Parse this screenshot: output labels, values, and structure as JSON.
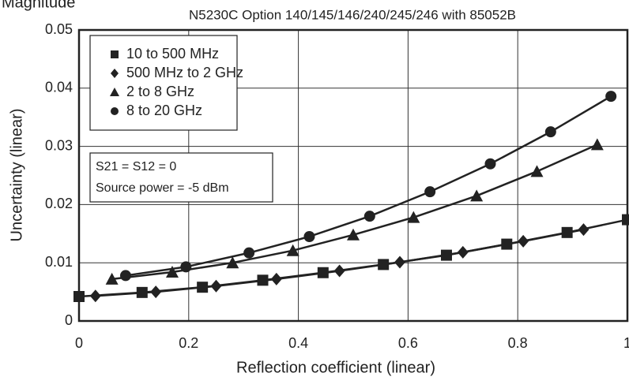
{
  "chart_data": {
    "type": "line",
    "corner_label": "Magnitude",
    "title": "N5230C Option 140/145/146/240/245/246 with 85052B",
    "x_label": "Reflection coefficient (linear)",
    "y_label": "Uncertainty (linear)",
    "annotations": [
      "S21 = S12 = 0",
      "Source power = -5 dBm"
    ],
    "xlim": [
      0,
      1
    ],
    "xticks": [
      0,
      0.2,
      0.4,
      0.6,
      0.8,
      1
    ],
    "ylim": [
      0,
      0.05
    ],
    "yticks": [
      0,
      0.01,
      0.02,
      0.03,
      0.04,
      0.05
    ],
    "grid": true,
    "legend": "upper left",
    "series": [
      {
        "name": "10 to 500 MHz",
        "marker": "square",
        "color": "#222222",
        "x": [
          0,
          0.115,
          0.225,
          0.335,
          0.445,
          0.555,
          0.67,
          0.78,
          0.89,
          1.0
        ],
        "values": [
          0.0042,
          0.0049,
          0.0058,
          0.007,
          0.0083,
          0.0097,
          0.0113,
          0.0132,
          0.0152,
          0.0174
        ]
      },
      {
        "name": "500 MHz to 2 GHz",
        "marker": "diamond",
        "color": "#222222",
        "x": [
          0.03,
          0.14,
          0.25,
          0.36,
          0.475,
          0.585,
          0.7,
          0.81,
          0.92
        ],
        "values": [
          0.0043,
          0.005,
          0.006,
          0.0072,
          0.0086,
          0.0101,
          0.0118,
          0.0137,
          0.0157
        ]
      },
      {
        "name": "2 to 8 GHz",
        "marker": "triangle",
        "color": "#222222",
        "x": [
          0.06,
          0.17,
          0.28,
          0.39,
          0.5,
          0.61,
          0.725,
          0.835,
          0.945
        ],
        "values": [
          0.0072,
          0.0084,
          0.01,
          0.0121,
          0.0148,
          0.0178,
          0.0215,
          0.0257,
          0.0303
        ]
      },
      {
        "name": "8 to 20 GHz",
        "marker": "circle",
        "color": "#222222",
        "x": [
          0.085,
          0.195,
          0.31,
          0.42,
          0.53,
          0.64,
          0.75,
          0.86,
          0.97
        ],
        "values": [
          0.0078,
          0.0093,
          0.0117,
          0.0145,
          0.018,
          0.0222,
          0.027,
          0.0325,
          0.0386
        ]
      }
    ]
  }
}
